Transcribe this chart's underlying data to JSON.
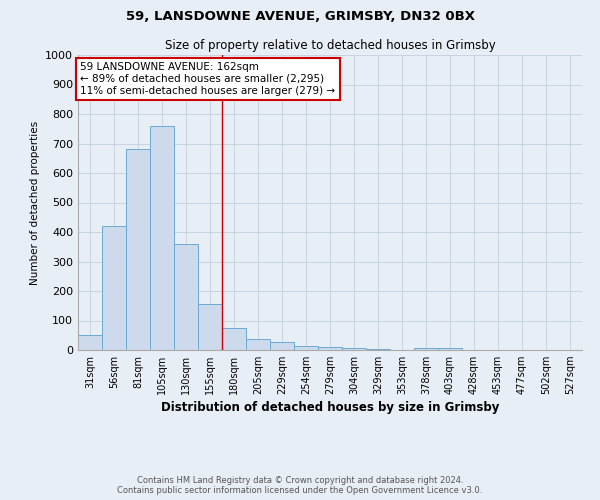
{
  "title1": "59, LANSDOWNE AVENUE, GRIMSBY, DN32 0BX",
  "title2": "Size of property relative to detached houses in Grimsby",
  "xlabel": "Distribution of detached houses by size in Grimsby",
  "ylabel": "Number of detached properties",
  "footnote1": "Contains HM Land Registry data © Crown copyright and database right 2024.",
  "footnote2": "Contains public sector information licensed under the Open Government Licence v3.0.",
  "bar_color": "#ccdaeb",
  "bar_edge_color": "#6aaad4",
  "categories": [
    "31sqm",
    "56sqm",
    "81sqm",
    "105sqm",
    "130sqm",
    "155sqm",
    "180sqm",
    "205sqm",
    "229sqm",
    "254sqm",
    "279sqm",
    "304sqm",
    "329sqm",
    "353sqm",
    "378sqm",
    "403sqm",
    "428sqm",
    "453sqm",
    "477sqm",
    "502sqm",
    "527sqm"
  ],
  "values": [
    50,
    420,
    680,
    760,
    360,
    155,
    75,
    38,
    27,
    15,
    10,
    7,
    5,
    0,
    8,
    8,
    0,
    0,
    0,
    0,
    0
  ],
  "ylim": [
    0,
    1000
  ],
  "yticks": [
    0,
    100,
    200,
    300,
    400,
    500,
    600,
    700,
    800,
    900,
    1000
  ],
  "red_line_x": 5.5,
  "annotation_line1": "59 LANSDOWNE AVENUE: 162sqm",
  "annotation_line2": "← 89% of detached houses are smaller (2,295)",
  "annotation_line3": "11% of semi-detached houses are larger (279) →",
  "annotation_box_color": "#ffffff",
  "annotation_border_color": "#cc0000",
  "grid_color": "#c8d4e0",
  "background_color": "#e8eef5",
  "fig_background": "#e8eef5"
}
